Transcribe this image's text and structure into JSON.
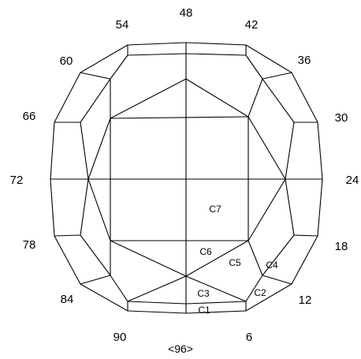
{
  "diagram": {
    "line_color": "#000000",
    "background": "#ffffff",
    "index_labels": [
      "48",
      "42",
      "36",
      "30",
      "24",
      "18",
      "12",
      "6",
      "90",
      "84",
      "78",
      "72",
      "66",
      "60",
      "54"
    ],
    "facet_labels": [
      "C1",
      "C2",
      "C3",
      "C4",
      "C5",
      "C6",
      "C7"
    ],
    "index_gear": "<96>"
  }
}
